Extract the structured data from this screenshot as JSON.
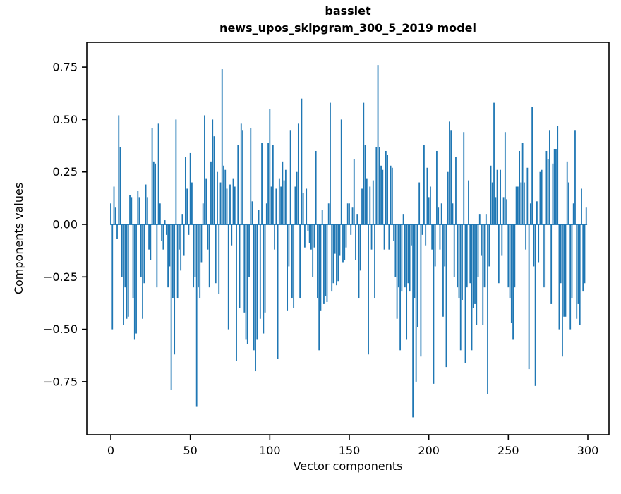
{
  "figure": {
    "title_line1": "basslet",
    "title_line2": "news_upos_skipgram_300_5_2019 model",
    "xlabel": "Vector components",
    "ylabel": "Components values"
  },
  "chart_data": {
    "type": "bar",
    "title": "basslet\nnews_upos_skipgram_300_5_2019 model",
    "xlabel": "Vector components",
    "ylabel": "Components values",
    "legend": "none",
    "grid": false,
    "bar_color": "#1f77b4",
    "spine_color": "#000000",
    "text_color": "#000000",
    "n_components": 300,
    "x_ticks": [
      0,
      50,
      100,
      150,
      200,
      250,
      300
    ],
    "y_ticks": [
      0.75,
      0.5,
      0.25,
      0.0,
      -0.25,
      -0.5,
      -0.75
    ],
    "xlim": [
      -15,
      315
    ],
    "ylim": [
      -1.0,
      0.87
    ],
    "values": [
      0.1,
      -0.5,
      0.18,
      0.08,
      -0.07,
      0.52,
      0.37,
      -0.25,
      -0.48,
      -0.3,
      -0.45,
      -0.44,
      0.14,
      0.13,
      -0.35,
      -0.55,
      -0.52,
      0.16,
      0.13,
      -0.25,
      -0.45,
      -0.28,
      0.19,
      0.13,
      -0.12,
      -0.17,
      0.46,
      0.3,
      0.29,
      -0.3,
      0.48,
      0.1,
      -0.08,
      -0.12,
      0.02,
      -0.05,
      -0.3,
      -0.2,
      -0.79,
      -0.35,
      -0.62,
      0.5,
      -0.35,
      -0.12,
      -0.22,
      0.05,
      -0.15,
      0.32,
      0.17,
      -0.05,
      0.34,
      0.2,
      -0.3,
      -0.25,
      -0.87,
      -0.3,
      -0.35,
      -0.18,
      0.1,
      0.52,
      0.22,
      -0.12,
      -0.3,
      0.3,
      0.5,
      0.42,
      -0.28,
      0.25,
      -0.33,
      0.2,
      0.74,
      0.28,
      0.26,
      0.17,
      -0.5,
      0.19,
      -0.1,
      0.22,
      0.18,
      -0.65,
      0.38,
      -0.4,
      0.48,
      0.45,
      -0.42,
      -0.55,
      -0.57,
      -0.25,
      0.46,
      0.11,
      -0.6,
      -0.7,
      -0.55,
      0.07,
      -0.45,
      0.39,
      -0.52,
      -0.42,
      0.1,
      0.39,
      0.55,
      0.18,
      0.38,
      -0.12,
      0.17,
      -0.64,
      0.22,
      0.18,
      0.3,
      0.21,
      0.26,
      -0.41,
      -0.2,
      0.45,
      -0.35,
      -0.4,
      0.18,
      0.25,
      0.48,
      -0.35,
      0.6,
      0.15,
      -0.11,
      0.17,
      -0.03,
      -0.09,
      -0.12,
      -0.25,
      -0.11,
      0.35,
      -0.35,
      -0.6,
      -0.41,
      0.07,
      -0.38,
      -0.34,
      -0.37,
      0.1,
      0.58,
      -0.32,
      -0.28,
      -0.14,
      -0.29,
      -0.27,
      -0.15,
      0.5,
      -0.18,
      -0.17,
      -0.11,
      0.1,
      0.1,
      -0.05,
      0.08,
      0.31,
      -0.17,
      0.05,
      -0.35,
      -0.22,
      0.17,
      0.58,
      0.38,
      0.22,
      -0.62,
      0.18,
      -0.12,
      0.21,
      -0.35,
      0.37,
      0.76,
      0.37,
      0.28,
      0.26,
      -0.12,
      0.35,
      0.33,
      -0.12,
      0.28,
      0.27,
      -0.08,
      -0.25,
      -0.45,
      -0.3,
      -0.6,
      -0.32,
      0.05,
      -0.3,
      -0.55,
      -0.28,
      -0.32,
      -0.1,
      -0.92,
      -0.35,
      -0.75,
      -0.49,
      0.2,
      -0.63,
      -0.05,
      0.38,
      -0.1,
      0.27,
      0.13,
      0.18,
      -0.12,
      -0.76,
      -0.2,
      0.35,
      0.08,
      -0.12,
      0.1,
      -0.44,
      -0.2,
      -0.68,
      0.25,
      0.49,
      0.45,
      0.1,
      -0.25,
      0.32,
      -0.3,
      -0.35,
      -0.6,
      -0.36,
      0.44,
      -0.66,
      -0.3,
      0.21,
      -0.28,
      -0.6,
      -0.4,
      -0.38,
      -0.48,
      -0.25,
      0.05,
      -0.15,
      -0.48,
      -0.3,
      0.05,
      -0.81,
      -0.2,
      0.28,
      0.2,
      0.58,
      0.13,
      0.26,
      -0.28,
      0.26,
      -0.15,
      0.13,
      0.44,
      0.12,
      -0.3,
      -0.35,
      -0.47,
      -0.55,
      -0.3,
      0.18,
      0.18,
      0.35,
      0.2,
      0.39,
      0.2,
      -0.12,
      0.27,
      -0.69,
      0.1,
      0.56,
      -0.2,
      -0.77,
      0.11,
      -0.18,
      0.25,
      0.26,
      -0.3,
      -0.3,
      0.35,
      0.31,
      0.45,
      -0.38,
      0.29,
      0.36,
      0.36,
      0.47,
      -0.5,
      -0.28,
      -0.63,
      -0.44,
      -0.44,
      0.3,
      0.2,
      -0.5,
      -0.35,
      0.1,
      0.45,
      -0.45,
      -0.38,
      -0.48,
      0.17,
      -0.32,
      -0.28,
      0.08
    ]
  }
}
